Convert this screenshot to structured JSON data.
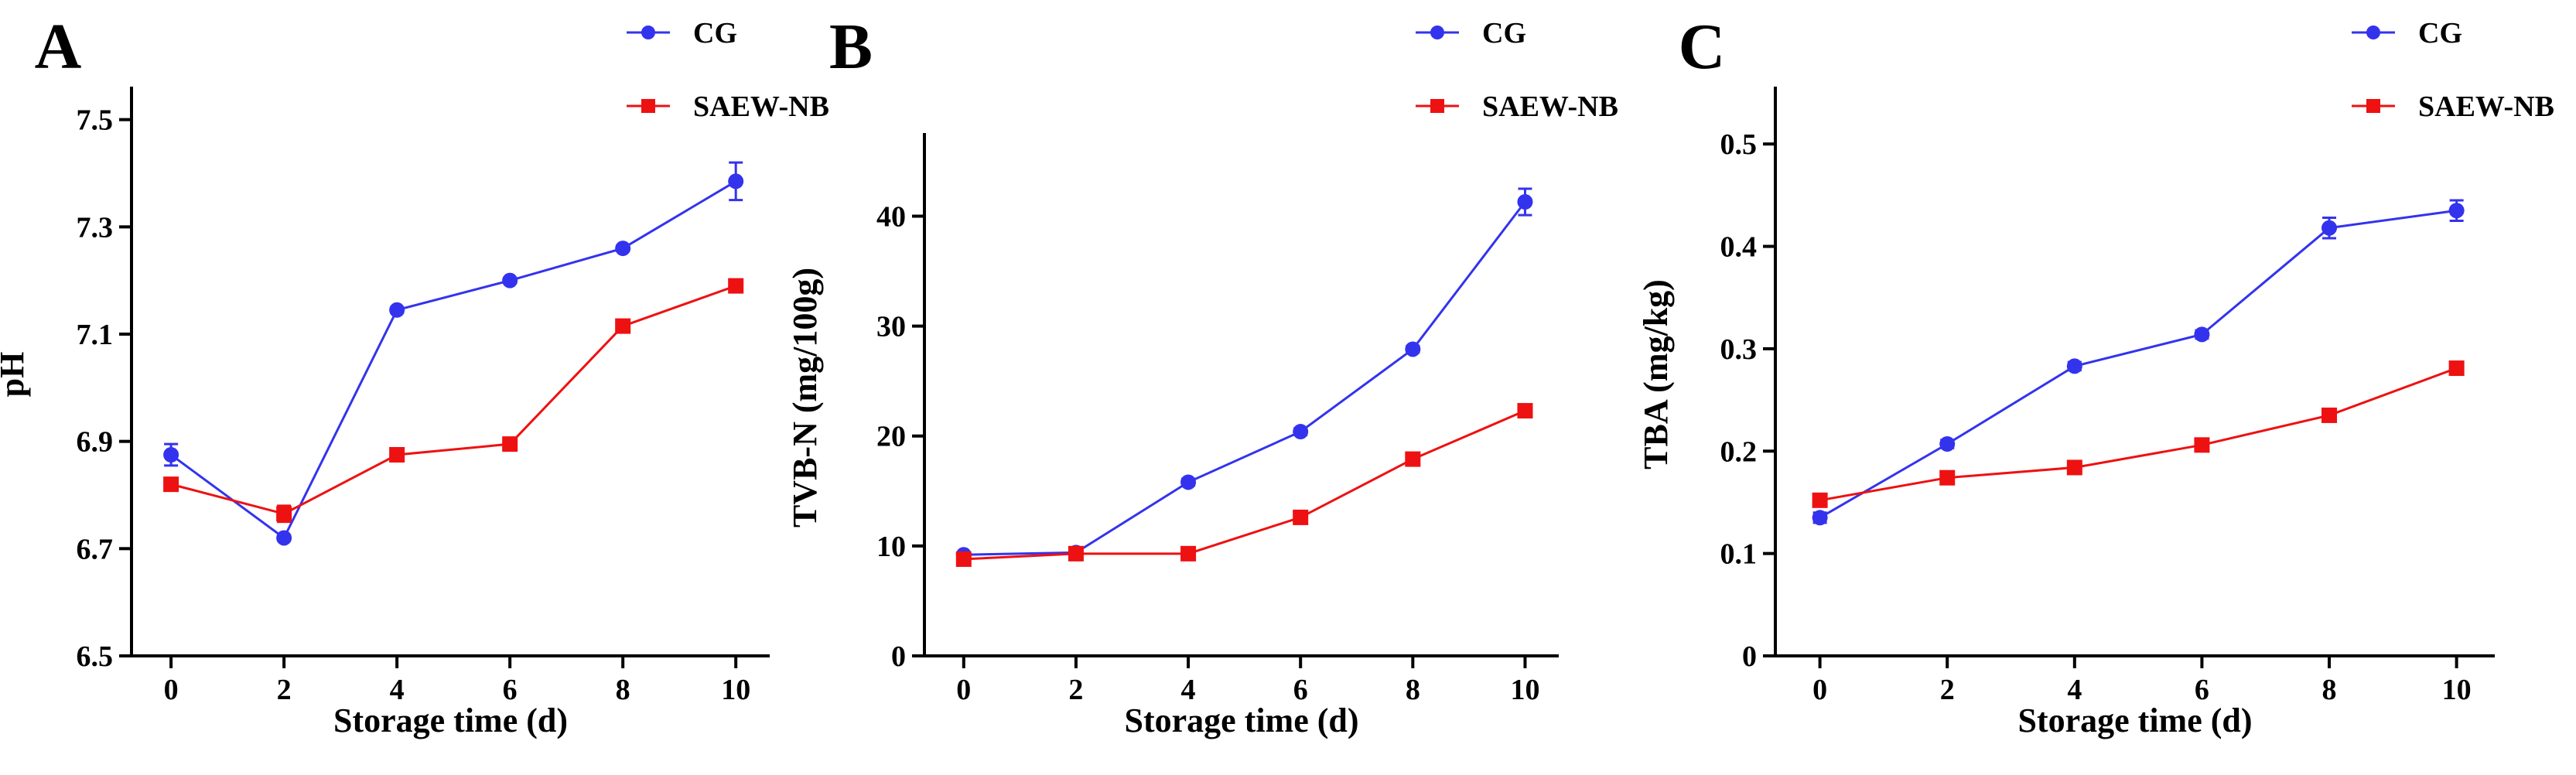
{
  "chart_data": [
    {
      "panel": "A",
      "type": "line",
      "xlabel": "Storage time (d)",
      "ylabel": "pH",
      "ylim": [
        6.5,
        7.55
      ],
      "xlim": [
        -0.7,
        10.6
      ],
      "yticks": [
        6.5,
        6.7,
        6.9,
        7.1,
        7.3,
        7.5
      ],
      "ytick_labels": [
        "6.5",
        "6.7",
        "6.9",
        "7.1",
        "7.3",
        "7.5"
      ],
      "x": [
        0,
        2,
        4,
        6,
        8,
        10
      ],
      "xtick_labels": [
        "0",
        "2",
        "4",
        "6",
        "8",
        "10"
      ],
      "legend": "top-right",
      "series": [
        {
          "name": "CG",
          "color": "#3333ee",
          "marker": "circle",
          "values": [
            6.875,
            6.72,
            7.145,
            7.2,
            7.26,
            7.385
          ],
          "errors": [
            0.02,
            0.005,
            0.005,
            0.005,
            0.005,
            0.035
          ]
        },
        {
          "name": "SAEW-NB",
          "color": "#ee1111",
          "marker": "square",
          "values": [
            6.82,
            6.765,
            6.875,
            6.895,
            7.115,
            7.19
          ],
          "errors": [
            0.005,
            0.015,
            0.005,
            0.005,
            0.005,
            0.005
          ]
        }
      ]
    },
    {
      "panel": "B",
      "type": "line",
      "xlabel": "Storage time (d)",
      "ylabel": "TVB-N (mg/100g)",
      "ylim": [
        0,
        47
      ],
      "xlim": [
        -0.7,
        10.6
      ],
      "yticks": [
        0,
        10,
        20,
        30,
        40
      ],
      "ytick_labels": [
        "0",
        "10",
        "20",
        "30",
        "40"
      ],
      "x": [
        0,
        2,
        4,
        6,
        8,
        10
      ],
      "xtick_labels": [
        "0",
        "2",
        "4",
        "6",
        "8",
        "10"
      ],
      "legend": "top-right",
      "series": [
        {
          "name": "CG",
          "color": "#3333ee",
          "marker": "circle",
          "values": [
            9.2,
            9.4,
            15.8,
            20.4,
            27.9,
            41.3
          ],
          "errors": [
            0.2,
            0.2,
            0.3,
            0.3,
            0.3,
            1.2
          ]
        },
        {
          "name": "SAEW-NB",
          "color": "#ee1111",
          "marker": "square",
          "values": [
            8.8,
            9.3,
            9.3,
            12.6,
            17.9,
            22.3
          ],
          "errors": [
            0.2,
            0.2,
            0.2,
            0.3,
            0.3,
            0.3
          ]
        }
      ]
    },
    {
      "panel": "C",
      "type": "line",
      "xlabel": "Storage time (d)",
      "ylabel": "TBA (mg/kg)",
      "ylim": [
        0,
        0.55
      ],
      "xlim": [
        -0.7,
        10.6
      ],
      "yticks": [
        0,
        0.1,
        0.2,
        0.3,
        0.4,
        0.5
      ],
      "ytick_labels": [
        "0",
        "0.1",
        "0.2",
        "0.3",
        "0.4",
        "0.5"
      ],
      "x": [
        0,
        2,
        4,
        6,
        8,
        10
      ],
      "xtick_labels": [
        "0",
        "2",
        "4",
        "6",
        "8",
        "10"
      ],
      "legend": "top-right",
      "series": [
        {
          "name": "CG",
          "color": "#3333ee",
          "marker": "circle",
          "values": [
            0.135,
            0.207,
            0.283,
            0.314,
            0.418,
            0.435
          ],
          "errors": [
            0.005,
            0.004,
            0.004,
            0.004,
            0.01,
            0.01
          ]
        },
        {
          "name": "SAEW-NB",
          "color": "#ee1111",
          "marker": "square",
          "values": [
            0.152,
            0.174,
            0.184,
            0.206,
            0.235,
            0.281
          ],
          "errors": [
            0.004,
            0.004,
            0.004,
            0.004,
            0.004,
            0.006
          ]
        }
      ]
    }
  ]
}
